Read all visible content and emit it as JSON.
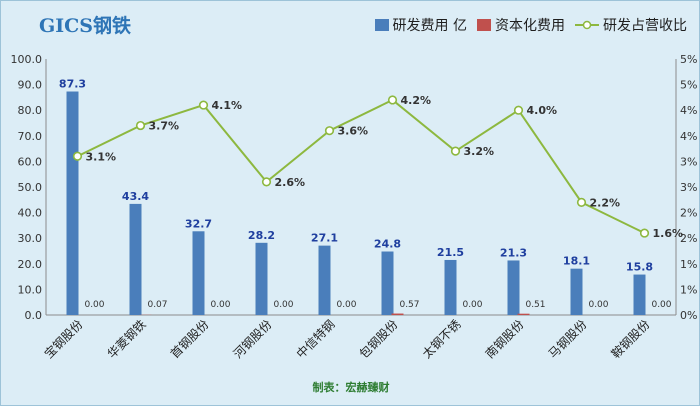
{
  "chart_data": {
    "type": "bar",
    "title": "GICS钢铁",
    "categories": [
      "宝钢股份",
      "华菱钢铁",
      "首钢股份",
      "河钢股份",
      "中信特钢",
      "包钢股份",
      "太钢不锈",
      "南钢股份",
      "马钢股份",
      "鞍钢股份"
    ],
    "series": [
      {
        "name": "研发费用 亿",
        "type": "bar",
        "axis": "left",
        "color": "#4a7ebb",
        "values": [
          87.3,
          43.4,
          32.7,
          28.2,
          27.1,
          24.8,
          21.5,
          21.3,
          18.1,
          15.8
        ],
        "labels": [
          "87.3",
          "43.4",
          "32.7",
          "28.2",
          "27.1",
          "24.8",
          "21.5",
          "21.3",
          "18.1",
          "15.8"
        ]
      },
      {
        "name": "资本化费用",
        "type": "bar",
        "axis": "left",
        "color": "#c0504d",
        "values": [
          0.0,
          0.07,
          0.0,
          0.0,
          0.0,
          0.57,
          0.0,
          0.51,
          0.0,
          0.0
        ],
        "labels": [
          "0.00",
          "0.07",
          "0.00",
          "0.00",
          "0.00",
          "0.57",
          "0.00",
          "0.51",
          "0.00",
          "0.00"
        ]
      },
      {
        "name": "研发占营收比",
        "type": "line",
        "axis": "right",
        "color": "#8db83f",
        "values": [
          3.1,
          3.7,
          4.1,
          2.6,
          3.6,
          4.2,
          3.2,
          4.0,
          2.2,
          1.6
        ],
        "labels": [
          "3.1%",
          "3.7%",
          "4.1%",
          "2.6%",
          "3.6%",
          "4.2%",
          "3.2%",
          "4.0%",
          "2.2%",
          "1.6%"
        ]
      }
    ],
    "y_left": {
      "min": 0,
      "max": 100,
      "step": 10,
      "ticks": [
        "0.0",
        "10.0",
        "20.0",
        "30.0",
        "40.0",
        "50.0",
        "60.0",
        "70.0",
        "80.0",
        "90.0",
        "100.0"
      ]
    },
    "y_right": {
      "min": 0,
      "max": 5,
      "ticks": [
        "0%",
        "1%",
        "1%",
        "2%",
        "2%",
        "3%",
        "3%",
        "4%",
        "4%",
        "5%",
        "5%"
      ]
    },
    "legend_position": "top-right",
    "grid": false,
    "caption": "制表：宏赫臻财"
  }
}
